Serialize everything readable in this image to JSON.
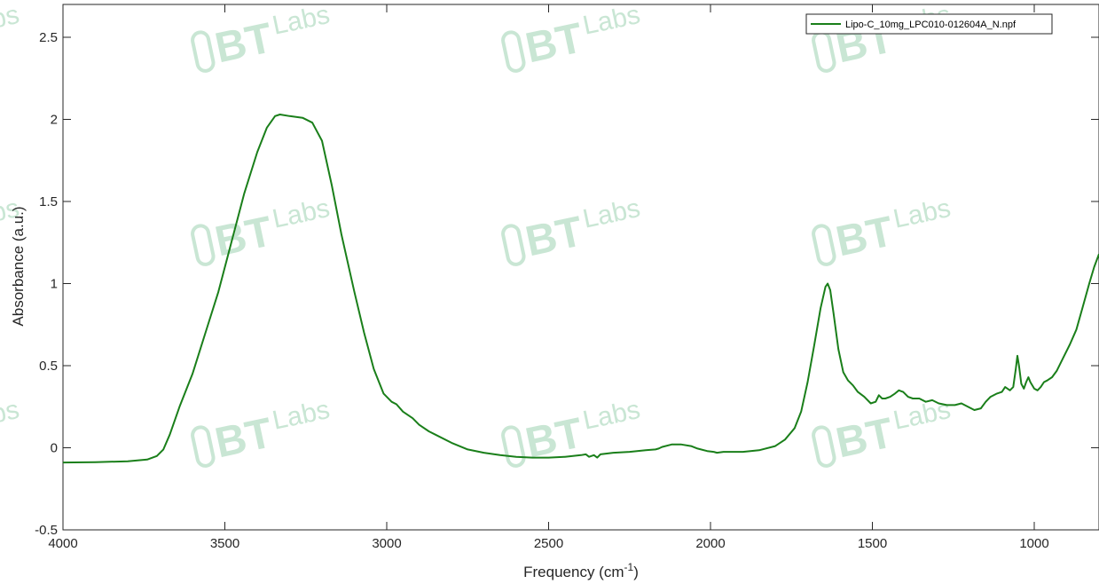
{
  "watermark": {
    "big": "BT",
    "small": "Labs"
  },
  "chart_data": {
    "type": "line",
    "xlabel": "Frequency (cm",
    "xlabel_sup": "-1",
    "xlabel_end": ")",
    "ylabel": "Absorbance (a.u.)",
    "xlim": [
      4000,
      800
    ],
    "x_reversed": true,
    "ylim": [
      -0.5,
      2.7
    ],
    "xticks": [
      4000,
      3500,
      3000,
      2500,
      2000,
      1500,
      1000
    ],
    "xtick_labels": [
      "4000",
      "3500",
      "3000",
      "2500",
      "2000",
      "1500",
      "1000"
    ],
    "yticks": [
      -0.5,
      0,
      0.5,
      1,
      1.5,
      2,
      2.5
    ],
    "ytick_labels": [
      "-0.5",
      "0",
      "0.5",
      "1",
      "1.5",
      "2",
      "2.5"
    ],
    "grid": false,
    "legend_position": "top-right",
    "series": [
      {
        "name": "Lipo-C_10mg_LPC010-012604A_N.npf",
        "color": "#1a7f1a",
        "points": [
          [
            4000,
            -0.09
          ],
          [
            3900,
            -0.088
          ],
          [
            3800,
            -0.082
          ],
          [
            3740,
            -0.072
          ],
          [
            3710,
            -0.05
          ],
          [
            3690,
            -0.01
          ],
          [
            3670,
            0.08
          ],
          [
            3640,
            0.25
          ],
          [
            3600,
            0.45
          ],
          [
            3560,
            0.7
          ],
          [
            3520,
            0.95
          ],
          [
            3480,
            1.25
          ],
          [
            3440,
            1.55
          ],
          [
            3400,
            1.8
          ],
          [
            3370,
            1.95
          ],
          [
            3345,
            2.02
          ],
          [
            3330,
            2.03
          ],
          [
            3300,
            2.02
          ],
          [
            3260,
            2.01
          ],
          [
            3230,
            1.98
          ],
          [
            3200,
            1.87
          ],
          [
            3170,
            1.6
          ],
          [
            3140,
            1.3
          ],
          [
            3100,
            0.95
          ],
          [
            3070,
            0.7
          ],
          [
            3040,
            0.48
          ],
          [
            3010,
            0.33
          ],
          [
            2985,
            0.28
          ],
          [
            2970,
            0.265
          ],
          [
            2950,
            0.22
          ],
          [
            2920,
            0.18
          ],
          [
            2900,
            0.14
          ],
          [
            2870,
            0.1
          ],
          [
            2850,
            0.08
          ],
          [
            2800,
            0.03
          ],
          [
            2750,
            -0.01
          ],
          [
            2700,
            -0.03
          ],
          [
            2650,
            -0.045
          ],
          [
            2600,
            -0.055
          ],
          [
            2550,
            -0.06
          ],
          [
            2500,
            -0.06
          ],
          [
            2450,
            -0.055
          ],
          [
            2400,
            -0.045
          ],
          [
            2385,
            -0.04
          ],
          [
            2375,
            -0.055
          ],
          [
            2360,
            -0.045
          ],
          [
            2350,
            -0.06
          ],
          [
            2340,
            -0.04
          ],
          [
            2320,
            -0.035
          ],
          [
            2300,
            -0.03
          ],
          [
            2250,
            -0.025
          ],
          [
            2200,
            -0.015
          ],
          [
            2170,
            -0.01
          ],
          [
            2160,
            -0.005
          ],
          [
            2150,
            0.005
          ],
          [
            2120,
            0.02
          ],
          [
            2090,
            0.02
          ],
          [
            2060,
            0.01
          ],
          [
            2040,
            -0.005
          ],
          [
            2010,
            -0.02
          ],
          [
            1990,
            -0.025
          ],
          [
            1980,
            -0.03
          ],
          [
            1960,
            -0.025
          ],
          [
            1900,
            -0.025
          ],
          [
            1850,
            -0.015
          ],
          [
            1800,
            0.01
          ],
          [
            1770,
            0.05
          ],
          [
            1740,
            0.12
          ],
          [
            1720,
            0.22
          ],
          [
            1700,
            0.4
          ],
          [
            1680,
            0.62
          ],
          [
            1660,
            0.85
          ],
          [
            1645,
            0.98
          ],
          [
            1638,
            1.0
          ],
          [
            1630,
            0.96
          ],
          [
            1620,
            0.82
          ],
          [
            1605,
            0.6
          ],
          [
            1590,
            0.46
          ],
          [
            1575,
            0.41
          ],
          [
            1560,
            0.38
          ],
          [
            1545,
            0.34
          ],
          [
            1525,
            0.31
          ],
          [
            1505,
            0.27
          ],
          [
            1490,
            0.28
          ],
          [
            1480,
            0.32
          ],
          [
            1470,
            0.3
          ],
          [
            1460,
            0.3
          ],
          [
            1445,
            0.31
          ],
          [
            1430,
            0.33
          ],
          [
            1418,
            0.35
          ],
          [
            1405,
            0.34
          ],
          [
            1390,
            0.31
          ],
          [
            1375,
            0.3
          ],
          [
            1355,
            0.3
          ],
          [
            1335,
            0.28
          ],
          [
            1315,
            0.29
          ],
          [
            1295,
            0.27
          ],
          [
            1270,
            0.26
          ],
          [
            1245,
            0.26
          ],
          [
            1225,
            0.27
          ],
          [
            1205,
            0.25
          ],
          [
            1185,
            0.23
          ],
          [
            1165,
            0.24
          ],
          [
            1150,
            0.28
          ],
          [
            1135,
            0.31
          ],
          [
            1115,
            0.33
          ],
          [
            1100,
            0.34
          ],
          [
            1090,
            0.37
          ],
          [
            1075,
            0.35
          ],
          [
            1065,
            0.37
          ],
          [
            1057,
            0.48
          ],
          [
            1052,
            0.56
          ],
          [
            1047,
            0.5
          ],
          [
            1040,
            0.39
          ],
          [
            1032,
            0.36
          ],
          [
            1025,
            0.4
          ],
          [
            1018,
            0.43
          ],
          [
            1012,
            0.4
          ],
          [
            1000,
            0.36
          ],
          [
            990,
            0.35
          ],
          [
            980,
            0.37
          ],
          [
            970,
            0.4
          ],
          [
            960,
            0.41
          ],
          [
            945,
            0.43
          ],
          [
            930,
            0.47
          ],
          [
            910,
            0.55
          ],
          [
            890,
            0.63
          ],
          [
            870,
            0.72
          ],
          [
            850,
            0.86
          ],
          [
            830,
            1.0
          ],
          [
            815,
            1.1
          ],
          [
            800,
            1.18
          ]
        ]
      }
    ]
  }
}
